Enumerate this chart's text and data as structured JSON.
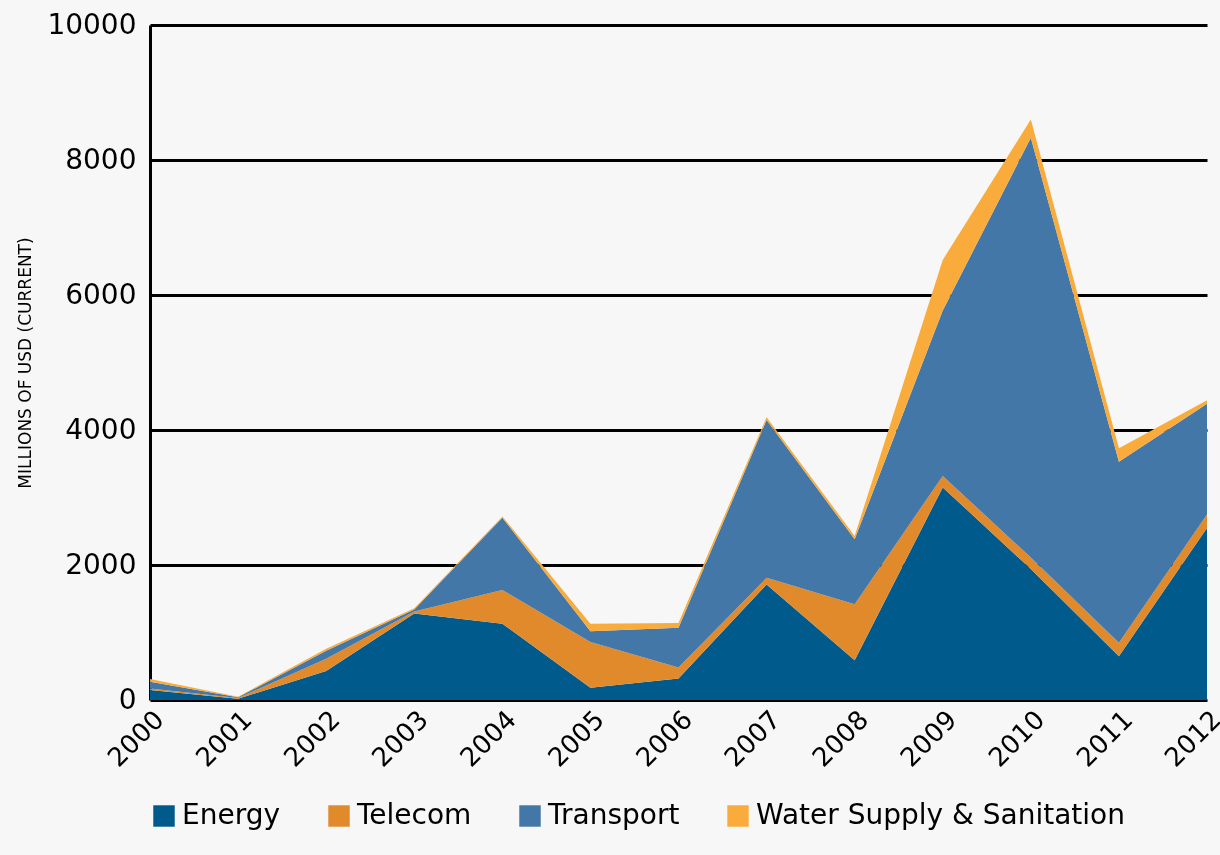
{
  "chart_data": {
    "type": "area",
    "ylabel": "MILLIONS OF USD (CURRENT)",
    "categories": [
      "2000",
      "2001",
      "2002",
      "2003",
      "2004",
      "2005",
      "2006",
      "2007",
      "2008",
      "2009",
      "2010",
      "2011",
      "2012"
    ],
    "stacked": true,
    "series": [
      {
        "name": "Energy",
        "color": "#005a8c",
        "values": [
          150,
          20,
          430,
          1280,
          1130,
          180,
          320,
          1710,
          590,
          3150,
          1940,
          650,
          2550
        ]
      },
      {
        "name": "Telecom",
        "color": "#e08a2c",
        "values": [
          20,
          10,
          180,
          30,
          500,
          680,
          160,
          100,
          830,
          170,
          170,
          200,
          200
        ]
      },
      {
        "name": "Transport",
        "color": "#4277a8",
        "values": [
          100,
          10,
          120,
          30,
          1070,
          160,
          590,
          2340,
          960,
          2450,
          6220,
          2680,
          1640
        ]
      },
      {
        "name": "Water Supply & Sanitation",
        "color": "#f9ab3b",
        "values": [
          40,
          10,
          30,
          20,
          20,
          110,
          70,
          40,
          50,
          750,
          270,
          200,
          50
        ]
      }
    ],
    "ylim": [
      0,
      10000
    ],
    "yticks": [
      0,
      2000,
      4000,
      6000,
      8000,
      10000
    ],
    "grid": "y",
    "legend": "bottom"
  }
}
